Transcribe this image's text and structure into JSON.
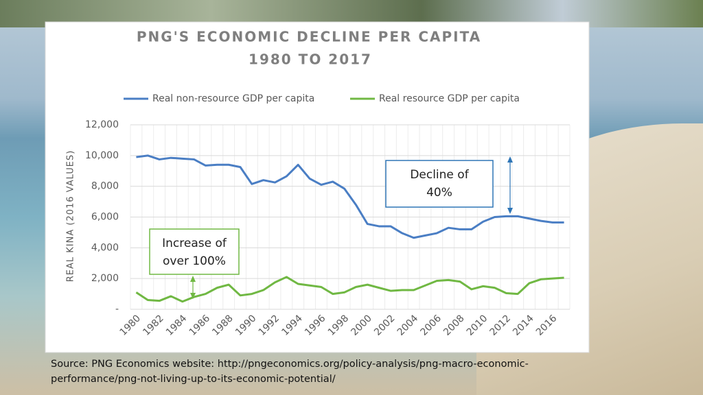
{
  "chart_data": {
    "type": "line",
    "title": "PNG'S ECONOMIC DECLINE  PER CAPITA",
    "subtitle": "1980 TO 2017",
    "y_label": "REAL KINA (2016 VALUES)",
    "categories": [
      "1980",
      null,
      "1982",
      null,
      "1984",
      null,
      "1986",
      null,
      "1988",
      null,
      "1990",
      null,
      "1992",
      null,
      "1994",
      null,
      "1996",
      null,
      "1998",
      null,
      "2000",
      null,
      "2002",
      null,
      "2004",
      null,
      "2006",
      null,
      "2008",
      null,
      "2010",
      null,
      "2012",
      null,
      "2014",
      null,
      "2016",
      null
    ],
    "series": [
      {
        "name": "Real non-resource GDP per capita",
        "color": "#4a7ec4",
        "values": [
          9900,
          10000,
          9750,
          9850,
          9800,
          9750,
          9350,
          9400,
          9400,
          9250,
          8150,
          8400,
          8250,
          8650,
          9400,
          8500,
          8100,
          8300,
          7850,
          6800,
          5550,
          5400,
          5400,
          4950,
          4650,
          4800,
          4950,
          5300,
          5200,
          5200,
          5700,
          6000,
          6050,
          6050,
          5900,
          5750,
          5650,
          5650
        ]
      },
      {
        "name": "Real resource GDP per capita",
        "color": "#70b843",
        "values": [
          1100,
          600,
          550,
          850,
          500,
          800,
          1000,
          1400,
          1600,
          900,
          1000,
          1250,
          1750,
          2100,
          1650,
          1550,
          1450,
          1000,
          1100,
          1450,
          1600,
          1400,
          1200,
          1250,
          1250,
          1550,
          1850,
          1900,
          1800,
          1300,
          1500,
          1400,
          1050,
          1000,
          1700,
          1950,
          2000,
          2050
        ]
      }
    ],
    "ylim": [
      0,
      12000
    ],
    "yticks": [
      {
        "value": 0,
        "label": "-"
      },
      {
        "value": 2000,
        "label": "2,000"
      },
      {
        "value": 4000,
        "label": "4,000"
      },
      {
        "value": 6000,
        "label": "6,000"
      },
      {
        "value": 8000,
        "label": "8,000"
      },
      {
        "value": 10000,
        "label": "10,000"
      },
      {
        "value": 12000,
        "label": "12,000"
      }
    ],
    "grid": true,
    "legend": "top",
    "annotations": [
      {
        "lines": [
          "Decline of",
          "40%"
        ],
        "color": "#2e75b6"
      },
      {
        "lines": [
          "Increase of",
          "over 100%"
        ],
        "color": "#70b843"
      }
    ]
  },
  "source": "Source: PNG Economics website: http://pngeconomics.org/policy-analysis/png-macro-economic-performance/png-not-living-up-to-its-economic-potential/"
}
